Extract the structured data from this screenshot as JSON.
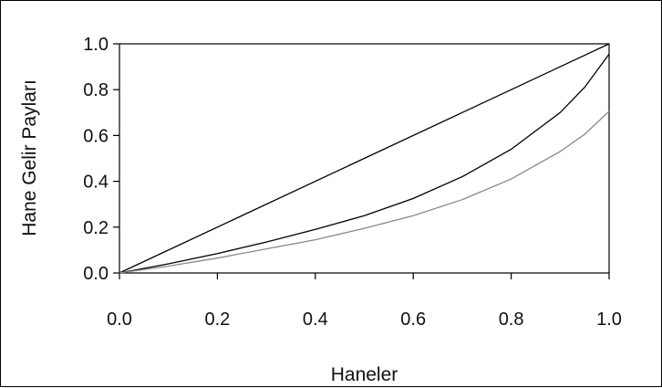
{
  "chart_data": {
    "type": "line",
    "title": "",
    "xlabel": "Haneler",
    "ylabel": "Hane Gelir Payları",
    "xlim": [
      0,
      1
    ],
    "ylim": [
      0,
      1
    ],
    "x_ticks": [
      "0.0",
      "0.2",
      "0.4",
      "0.6",
      "0.8",
      "1.0"
    ],
    "y_ticks": [
      "0.0",
      "0.2",
      "0.4",
      "0.6",
      "0.8",
      "1.0"
    ],
    "grid": false,
    "legend": "none",
    "series": [
      {
        "color": "#000000",
        "x": [
          0,
          1
        ],
        "y": [
          0,
          1
        ]
      },
      {
        "color": "#000000",
        "x": [
          0,
          0.1,
          0.2,
          0.3,
          0.4,
          0.5,
          0.6,
          0.7,
          0.8,
          0.9,
          0.95,
          1.0
        ],
        "y": [
          0,
          0.04,
          0.085,
          0.135,
          0.19,
          0.25,
          0.325,
          0.42,
          0.54,
          0.7,
          0.81,
          0.955
        ]
      },
      {
        "color": "#888888",
        "x": [
          0,
          0.1,
          0.2,
          0.3,
          0.4,
          0.5,
          0.6,
          0.7,
          0.8,
          0.9,
          0.95,
          1.0
        ],
        "y": [
          0,
          0.03,
          0.065,
          0.105,
          0.145,
          0.195,
          0.25,
          0.32,
          0.41,
          0.53,
          0.605,
          0.705
        ]
      }
    ]
  }
}
